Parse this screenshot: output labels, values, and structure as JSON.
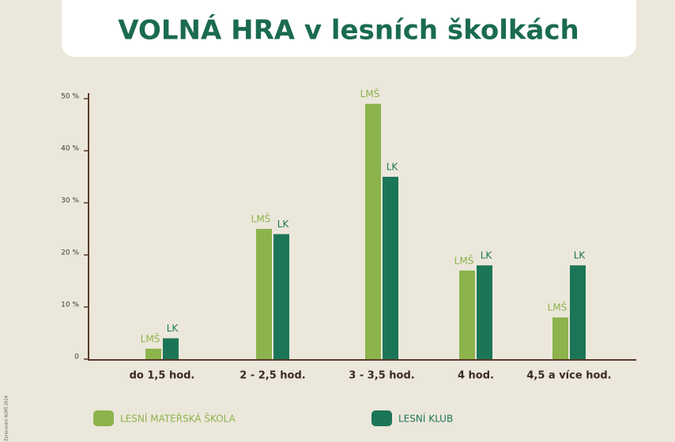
{
  "chart_data": {
    "type": "bar",
    "title": "VOLNÁ HRA v lesních školkách",
    "categories": [
      "do 1,5 hod.",
      "2 - 2,5 hod.",
      "3 - 3,5 hod.",
      "4 hod.",
      "4,5 a více hod."
    ],
    "series": [
      {
        "name": "LESNÍ MATEŘSKÁ ŠKOLA",
        "short_name": "LMŠ",
        "color": "#8cb34c",
        "values": [
          2,
          25,
          49,
          17,
          8
        ]
      },
      {
        "name": "LESNÍ KLUB",
        "short_name": "LK",
        "color": "#1b7657",
        "values": [
          4,
          24,
          35,
          18,
          18
        ]
      }
    ],
    "ylim": [
      0,
      50
    ],
    "yticks": [
      0,
      {
        "value": 10,
        "label": "10 %"
      },
      {
        "value": 20,
        "label": "20 %"
      },
      {
        "value": 30,
        "label": "30 %"
      },
      {
        "value": 40,
        "label": "40 %"
      },
      {
        "value": 50,
        "label": "50 %"
      }
    ],
    "source": "Zpracování ALMŠ 2024"
  }
}
